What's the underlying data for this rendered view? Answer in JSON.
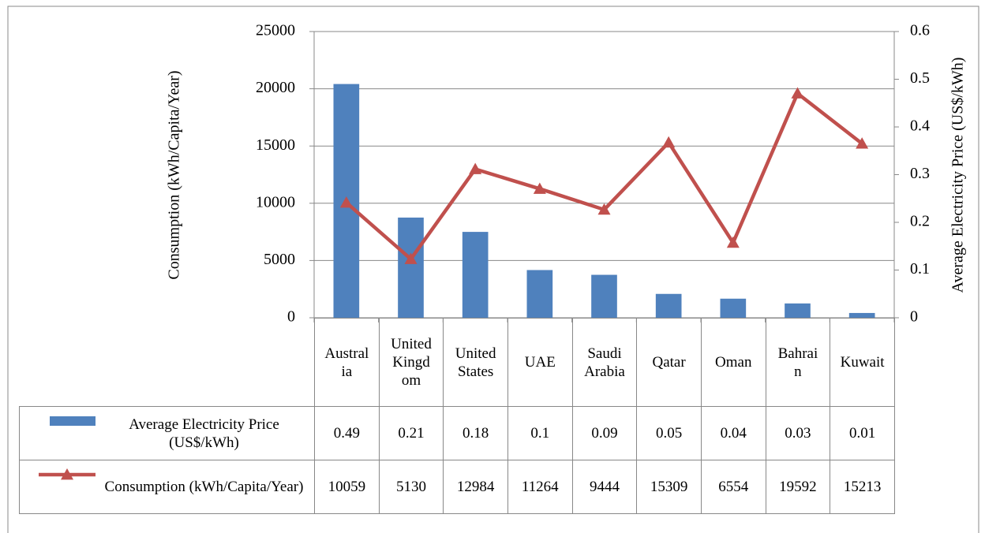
{
  "chart_data": {
    "type": "bar-line",
    "categories": [
      "Australia",
      "United Kingdom",
      "United States",
      "UAE",
      "Saudi Arabia",
      "Qatar",
      "Oman",
      "Bahrain",
      "Kuwait"
    ],
    "series": [
      {
        "name": "Average Electricity Price (US$/kWh)",
        "type": "bar",
        "axis": "y2",
        "color": "#4f81bd",
        "values": [
          0.49,
          0.21,
          0.18,
          0.1,
          0.09,
          0.05,
          0.04,
          0.03,
          0.01
        ]
      },
      {
        "name": "Consumption (kWh/Capita/Year)",
        "type": "line",
        "axis": "y",
        "color": "#c0504d",
        "values": [
          10059,
          5130,
          12984,
          11264,
          9444,
          15309,
          6554,
          19592,
          15213
        ]
      }
    ],
    "ylabel": "Consumption  (kWh/Capita/Year)",
    "y2label": "Average Electricity Price (US$/kWh)",
    "ylim": [
      0,
      25000
    ],
    "yticks": [
      0,
      5000,
      10000,
      15000,
      20000,
      25000
    ],
    "y2lim": [
      0,
      0.6
    ],
    "y2ticks": [
      0,
      0.1,
      0.2,
      0.3,
      0.4,
      0.5,
      0.6
    ],
    "grid": true
  }
}
